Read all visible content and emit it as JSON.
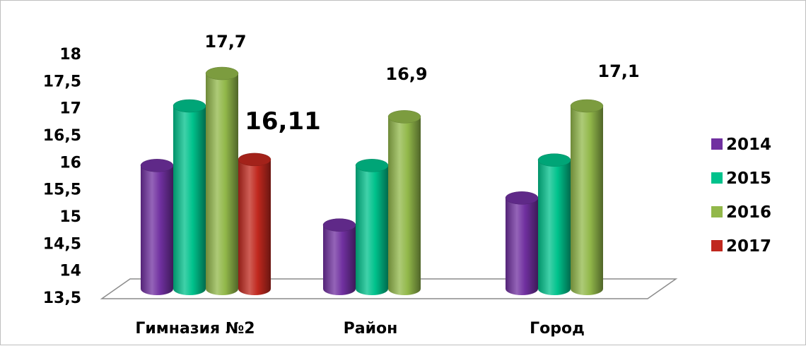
{
  "chart_data": {
    "type": "bar",
    "title": "",
    "xlabel": "",
    "ylabel": "",
    "ylim": [
      13.5,
      18
    ],
    "y_ticks": [
      "13,5",
      "14",
      "14,5",
      "15",
      "15,5",
      "16",
      "16,5",
      "17",
      "17,5",
      "18"
    ],
    "categories": [
      "Гимназия №2",
      "Район",
      "Город"
    ],
    "series": [
      {
        "name": "2014",
        "color": "#7030a0",
        "values": [
          16.0,
          14.9,
          15.4
        ]
      },
      {
        "name": "2015",
        "color": "#00c28c",
        "values": [
          17.1,
          16.0,
          16.1
        ]
      },
      {
        "name": "2016",
        "color": "#92b84a",
        "values": [
          17.7,
          16.9,
          17.1
        ]
      },
      {
        "name": "2017",
        "color": "#c0281e",
        "values": [
          16.11,
          null,
          null
        ]
      }
    ],
    "data_labels": [
      {
        "category": 0,
        "series": 2,
        "text": "17,7"
      },
      {
        "category": 0,
        "series": 3,
        "text": "16,11"
      },
      {
        "category": 1,
        "series": 2,
        "text": "16,9"
      },
      {
        "category": 2,
        "series": 2,
        "text": "17,1"
      }
    ],
    "legend_position": "right",
    "grid": false,
    "style": "3d-cylinder"
  }
}
